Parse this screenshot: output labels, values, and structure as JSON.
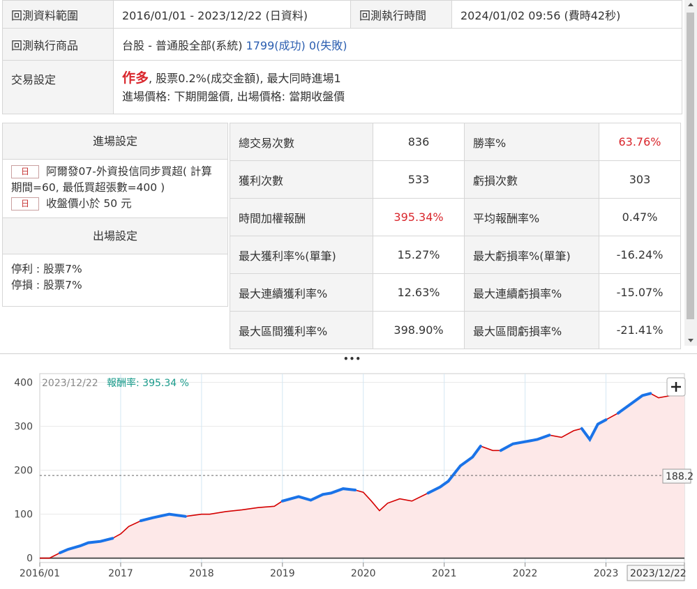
{
  "info": {
    "range_label": "回測資料範圍",
    "range_value": "2016/01/01 - 2023/12/22 (日資料)",
    "time_label": "回測執行時間",
    "time_value": "2024/01/02 09:56 (費時42秒)",
    "target_label": "回測執行商品",
    "target_market": "台股 - 普通股全部(系統)",
    "target_success": "1799(成功)",
    "target_fail": "0(失敗)",
    "trade_label": "交易設定",
    "trade_mode": "作多",
    "trade_detail": ", 股票0.2%(成交金額), 最大同時進場1",
    "trade_detail2": "進場價格: 下期開盤價, 出場價格: 當期收盤價"
  },
  "entry": {
    "title": "進場設定",
    "cond1_tag": "日",
    "cond1_text": "阿爾發07-外資投信同步買超( 計算期間=60, 最低買超張數=400 )",
    "cond2_tag": "日",
    "cond2_text": "收盤價小於 50 元"
  },
  "exit": {
    "title": "出場設定",
    "stop_profit": "停利 : 股票7%",
    "stop_loss": "停損 : 股票7%"
  },
  "stats": [
    {
      "k1": "總交易次數",
      "v1": "836",
      "k2": "勝率%",
      "v2": "63.76%",
      "r1": false,
      "r2": true
    },
    {
      "k1": "獲利次數",
      "v1": "533",
      "k2": "虧損次數",
      "v2": "303",
      "r1": false,
      "r2": false
    },
    {
      "k1": "時間加權報酬",
      "v1": "395.34%",
      "k2": "平均報酬率%",
      "v2": "0.47%",
      "r1": true,
      "r2": false
    },
    {
      "k1": "最大獲利率%(單筆)",
      "v1": "15.27%",
      "k2": "最大虧損率%(單筆)",
      "v2": "-16.24%",
      "r1": false,
      "r2": false
    },
    {
      "k1": "最大連續獲利率%",
      "v1": "12.63%",
      "k2": "最大連續虧損率%",
      "v2": "-15.07%",
      "r1": false,
      "r2": false
    },
    {
      "k1": "最大區間獲利率%",
      "v1": "398.90%",
      "k2": "最大區間虧損率%",
      "v2": "-21.41%",
      "r1": false,
      "r2": false
    }
  ],
  "chart_data": {
    "type": "area",
    "legend_date": "2023/12/22",
    "legend_label": "報酬率:",
    "legend_value": "395.34 %",
    "crosshair_value": "188.2",
    "crosshair_date": "2023/12/22",
    "y_ticks": [
      "400",
      "300",
      "200",
      "100",
      "0"
    ],
    "x_ticks": [
      "2016/01",
      "2017",
      "2018",
      "2019",
      "2020",
      "2021",
      "2022",
      "2023",
      "2023/12"
    ],
    "ylim": [
      -10,
      420
    ],
    "x": [
      2016.0,
      2016.12,
      2016.25,
      2016.35,
      2016.5,
      2016.6,
      2016.75,
      2016.9,
      2017.0,
      2017.1,
      2017.25,
      2017.4,
      2017.6,
      2017.8,
      2018.0,
      2018.1,
      2018.3,
      2018.5,
      2018.7,
      2018.9,
      2019.0,
      2019.2,
      2019.35,
      2019.5,
      2019.6,
      2019.75,
      2019.9,
      2020.0,
      2020.1,
      2020.2,
      2020.3,
      2020.45,
      2020.6,
      2020.8,
      2020.95,
      2021.05,
      2021.2,
      2021.35,
      2021.45,
      2021.6,
      2021.7,
      2021.85,
      2022.0,
      2022.15,
      2022.3,
      2022.45,
      2022.6,
      2022.7,
      2022.8,
      2022.9,
      2023.0,
      2023.15,
      2023.3,
      2023.45,
      2023.55,
      2023.65,
      2023.8,
      2023.97
    ],
    "y": [
      0,
      0,
      12,
      20,
      28,
      35,
      38,
      45,
      55,
      72,
      85,
      92,
      100,
      95,
      100,
      100,
      106,
      110,
      115,
      118,
      130,
      140,
      132,
      145,
      148,
      158,
      155,
      150,
      130,
      108,
      125,
      135,
      130,
      148,
      162,
      175,
      210,
      230,
      255,
      245,
      245,
      260,
      265,
      270,
      280,
      275,
      290,
      295,
      270,
      305,
      315,
      330,
      350,
      370,
      375,
      365,
      370,
      390
    ],
    "y_max_label": "400"
  }
}
